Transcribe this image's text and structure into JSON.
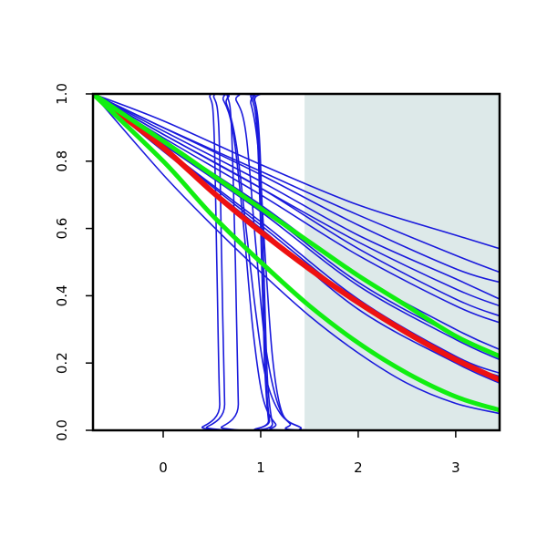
{
  "chart_data": {
    "type": "line",
    "title": "",
    "xlabel": "",
    "ylabel": "",
    "xlim": [
      -0.72,
      3.45
    ],
    "ylim": [
      0,
      1
    ],
    "x_ticks": [
      0,
      1,
      2,
      3
    ],
    "y_ticks": [
      0.0,
      0.2,
      0.4,
      0.6,
      0.8,
      1.0
    ],
    "x_tick_labels": [
      "0",
      "1",
      "2",
      "3"
    ],
    "y_tick_labels": [
      "0.0",
      "0.2",
      "0.4",
      "0.6",
      "0.8",
      "1.0"
    ],
    "grid": false,
    "legend": "none",
    "shaded_region": {
      "x_from": 1.45,
      "x_to": 3.45,
      "color": "#dde9e9"
    },
    "colors": {
      "blue": "#1a1adc",
      "red": "#ee1111",
      "green": "#11ee11"
    },
    "series": [
      {
        "color": "blue",
        "width": 1.6,
        "points": [
          [
            -0.72,
            1.0
          ],
          [
            0.0,
            0.92
          ],
          [
            1.0,
            0.79
          ],
          [
            2.0,
            0.67
          ],
          [
            3.0,
            0.58
          ],
          [
            3.45,
            0.54
          ]
        ]
      },
      {
        "color": "blue",
        "width": 1.6,
        "points": [
          [
            -0.72,
            1.0
          ],
          [
            0.0,
            0.9
          ],
          [
            1.0,
            0.77
          ],
          [
            2.0,
            0.64
          ],
          [
            3.0,
            0.52
          ],
          [
            3.45,
            0.47
          ]
        ]
      },
      {
        "color": "blue",
        "width": 1.6,
        "points": [
          [
            -0.72,
            1.0
          ],
          [
            0.0,
            0.9
          ],
          [
            1.0,
            0.76
          ],
          [
            2.0,
            0.61
          ],
          [
            3.0,
            0.48
          ],
          [
            3.45,
            0.44
          ]
        ]
      },
      {
        "color": "blue",
        "width": 1.6,
        "points": [
          [
            -0.72,
            1.0
          ],
          [
            0.0,
            0.89
          ],
          [
            1.0,
            0.74
          ],
          [
            2.0,
            0.58
          ],
          [
            3.0,
            0.45
          ],
          [
            3.45,
            0.39
          ]
        ]
      },
      {
        "color": "blue",
        "width": 1.6,
        "points": [
          [
            -0.72,
            1.0
          ],
          [
            0.0,
            0.88
          ],
          [
            1.0,
            0.72
          ],
          [
            2.0,
            0.56
          ],
          [
            3.0,
            0.42
          ],
          [
            3.45,
            0.37
          ]
        ]
      },
      {
        "color": "blue",
        "width": 1.6,
        "points": [
          [
            -0.72,
            1.0
          ],
          [
            0.0,
            0.88
          ],
          [
            1.0,
            0.72
          ],
          [
            2.0,
            0.54
          ],
          [
            3.0,
            0.39
          ],
          [
            3.45,
            0.34
          ]
        ]
      },
      {
        "color": "blue",
        "width": 1.6,
        "points": [
          [
            -0.72,
            1.0
          ],
          [
            0.0,
            0.87
          ],
          [
            1.0,
            0.7
          ],
          [
            2.0,
            0.52
          ],
          [
            3.0,
            0.37
          ],
          [
            3.45,
            0.32
          ]
        ]
      },
      {
        "color": "blue",
        "width": 1.6,
        "points": [
          [
            -0.72,
            1.0
          ],
          [
            0.0,
            0.86
          ],
          [
            1.0,
            0.67
          ],
          [
            2.0,
            0.46
          ],
          [
            3.0,
            0.3
          ],
          [
            3.45,
            0.24
          ]
        ]
      },
      {
        "color": "blue",
        "width": 1.6,
        "points": [
          [
            -0.72,
            1.0
          ],
          [
            0.0,
            0.86
          ],
          [
            1.0,
            0.66
          ],
          [
            2.0,
            0.44
          ],
          [
            3.0,
            0.28
          ],
          [
            3.45,
            0.22
          ]
        ]
      },
      {
        "color": "blue",
        "width": 1.6,
        "points": [
          [
            -0.72,
            1.0
          ],
          [
            0.0,
            0.85
          ],
          [
            1.0,
            0.65
          ],
          [
            2.0,
            0.43
          ],
          [
            3.0,
            0.27
          ],
          [
            3.45,
            0.21
          ]
        ]
      },
      {
        "color": "blue",
        "width": 1.6,
        "points": [
          [
            -0.72,
            1.0
          ],
          [
            0.0,
            0.84
          ],
          [
            1.0,
            0.62
          ],
          [
            2.0,
            0.39
          ],
          [
            3.0,
            0.22
          ],
          [
            3.45,
            0.17
          ]
        ]
      },
      {
        "color": "blue",
        "width": 1.6,
        "points": [
          [
            -0.72,
            1.0
          ],
          [
            0.0,
            0.84
          ],
          [
            1.0,
            0.61
          ],
          [
            2.0,
            0.38
          ],
          [
            3.0,
            0.21
          ],
          [
            3.45,
            0.16
          ]
        ]
      },
      {
        "color": "blue",
        "width": 1.6,
        "points": [
          [
            -0.72,
            1.0
          ],
          [
            0.0,
            0.83
          ],
          [
            1.0,
            0.6
          ],
          [
            2.0,
            0.36
          ],
          [
            3.0,
            0.2
          ],
          [
            3.45,
            0.14
          ]
        ]
      },
      {
        "color": "blue",
        "width": 1.6,
        "points": [
          [
            -0.72,
            1.0
          ],
          [
            0.0,
            0.76
          ],
          [
            0.5,
            0.61
          ],
          [
            1.0,
            0.47
          ],
          [
            1.5,
            0.34
          ],
          [
            2.0,
            0.23
          ],
          [
            2.5,
            0.14
          ],
          [
            3.0,
            0.08
          ],
          [
            3.45,
            0.05
          ]
        ]
      },
      {
        "color": "blue",
        "width": 1.6,
        "points": [
          [
            -0.72,
            1.0
          ],
          [
            0.4,
            1.0
          ],
          [
            0.48,
            0.99
          ],
          [
            0.52,
            0.9
          ],
          [
            0.55,
            0.5
          ],
          [
            0.58,
            0.08
          ],
          [
            0.62,
            0.0
          ],
          [
            3.45,
            0.0
          ]
        ]
      },
      {
        "color": "blue",
        "width": 1.6,
        "points": [
          [
            -0.72,
            1.0
          ],
          [
            0.45,
            1.0
          ],
          [
            0.52,
            0.99
          ],
          [
            0.57,
            0.9
          ],
          [
            0.6,
            0.5
          ],
          [
            0.63,
            0.08
          ],
          [
            0.66,
            0.0
          ],
          [
            3.45,
            0.0
          ]
        ]
      },
      {
        "color": "blue",
        "width": 1.6,
        "points": [
          [
            -0.72,
            1.0
          ],
          [
            0.6,
            1.0
          ],
          [
            0.66,
            0.99
          ],
          [
            0.7,
            0.9
          ],
          [
            0.74,
            0.5
          ],
          [
            0.77,
            0.08
          ],
          [
            0.8,
            0.0
          ],
          [
            3.45,
            0.0
          ]
        ]
      },
      {
        "color": "blue",
        "width": 1.6,
        "points": [
          [
            -0.72,
            1.0
          ],
          [
            0.5,
            1.0
          ],
          [
            0.62,
            0.98
          ],
          [
            0.72,
            0.88
          ],
          [
            0.82,
            0.62
          ],
          [
            0.92,
            0.3
          ],
          [
            1.02,
            0.1
          ],
          [
            1.15,
            0.02
          ],
          [
            1.3,
            0.0
          ],
          [
            3.45,
            0.0
          ]
        ]
      },
      {
        "color": "blue",
        "width": 1.6,
        "points": [
          [
            -0.72,
            1.0
          ],
          [
            0.55,
            1.0
          ],
          [
            0.65,
            0.97
          ],
          [
            0.75,
            0.85
          ],
          [
            0.85,
            0.6
          ],
          [
            0.95,
            0.35
          ],
          [
            1.05,
            0.16
          ],
          [
            1.2,
            0.05
          ],
          [
            1.4,
            0.01
          ],
          [
            1.6,
            0.0
          ],
          [
            3.45,
            0.0
          ]
        ]
      },
      {
        "color": "blue",
        "width": 1.6,
        "points": [
          [
            -0.72,
            1.0
          ],
          [
            0.65,
            1.0
          ],
          [
            0.75,
            0.98
          ],
          [
            0.85,
            0.88
          ],
          [
            0.95,
            0.55
          ],
          [
            1.05,
            0.25
          ],
          [
            1.2,
            0.06
          ],
          [
            1.4,
            0.01
          ],
          [
            1.6,
            0.0
          ],
          [
            3.45,
            0.0
          ]
        ]
      },
      {
        "color": "blue",
        "width": 1.6,
        "points": [
          [
            -0.72,
            1.0
          ],
          [
            0.8,
            1.0
          ],
          [
            0.9,
            0.99
          ],
          [
            0.96,
            0.9
          ],
          [
            1.0,
            0.6
          ],
          [
            1.04,
            0.2
          ],
          [
            1.08,
            0.03
          ],
          [
            1.12,
            0.0
          ],
          [
            3.45,
            0.0
          ]
        ]
      },
      {
        "color": "blue",
        "width": 1.6,
        "points": [
          [
            -0.72,
            1.0
          ],
          [
            0.82,
            1.0
          ],
          [
            0.92,
            0.99
          ],
          [
            0.97,
            0.9
          ],
          [
            1.01,
            0.55
          ],
          [
            1.05,
            0.18
          ],
          [
            1.09,
            0.03
          ],
          [
            1.13,
            0.0
          ],
          [
            3.45,
            0.0
          ]
        ]
      },
      {
        "color": "blue",
        "width": 1.6,
        "points": [
          [
            -0.72,
            1.0
          ],
          [
            0.85,
            1.0
          ],
          [
            0.94,
            0.98
          ],
          [
            0.99,
            0.85
          ],
          [
            1.03,
            0.5
          ],
          [
            1.07,
            0.15
          ],
          [
            1.12,
            0.02
          ],
          [
            1.16,
            0.0
          ],
          [
            3.45,
            0.0
          ]
        ]
      },
      {
        "color": "blue",
        "width": 1.6,
        "points": [
          [
            -0.72,
            1.0
          ],
          [
            0.8,
            1.0
          ],
          [
            0.9,
            0.97
          ],
          [
            0.98,
            0.82
          ],
          [
            1.05,
            0.5
          ],
          [
            1.12,
            0.22
          ],
          [
            1.2,
            0.07
          ],
          [
            1.3,
            0.02
          ],
          [
            1.45,
            0.0
          ],
          [
            3.45,
            0.0
          ]
        ]
      },
      {
        "color": "red",
        "width": 6,
        "points": [
          [
            -0.72,
            1.0
          ],
          [
            0.0,
            0.84
          ],
          [
            0.5,
            0.71
          ],
          [
            1.0,
            0.59
          ],
          [
            1.5,
            0.48
          ],
          [
            2.0,
            0.38
          ],
          [
            2.5,
            0.29
          ],
          [
            3.0,
            0.21
          ],
          [
            3.45,
            0.15
          ]
        ]
      },
      {
        "color": "green",
        "width": 5,
        "points": [
          [
            -0.72,
            1.0
          ],
          [
            0.0,
            0.86
          ],
          [
            0.5,
            0.76
          ],
          [
            1.0,
            0.66
          ],
          [
            1.5,
            0.56
          ],
          [
            2.0,
            0.46
          ],
          [
            2.5,
            0.37
          ],
          [
            3.0,
            0.28
          ],
          [
            3.45,
            0.22
          ]
        ]
      },
      {
        "color": "green",
        "width": 5,
        "points": [
          [
            -0.72,
            1.0
          ],
          [
            0.0,
            0.8
          ],
          [
            0.5,
            0.64
          ],
          [
            1.0,
            0.5
          ],
          [
            1.5,
            0.37
          ],
          [
            2.0,
            0.26
          ],
          [
            2.5,
            0.17
          ],
          [
            3.0,
            0.1
          ],
          [
            3.45,
            0.06
          ]
        ]
      }
    ]
  }
}
